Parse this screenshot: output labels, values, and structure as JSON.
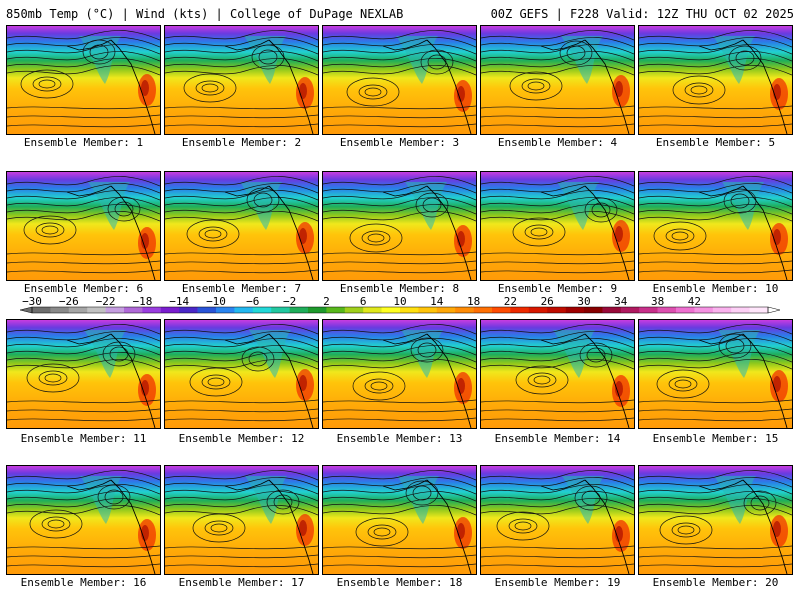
{
  "header": {
    "left": "850mb Temp (°C) | Wind (kts) | College of DuPage NEXLAB",
    "right": "00Z GEFS | F228 Valid: 12Z THU OCT 02 2025"
  },
  "members": [
    "Ensemble Member: 1",
    "Ensemble Member: 2",
    "Ensemble Member: 3",
    "Ensemble Member: 4",
    "Ensemble Member: 5",
    "Ensemble Member: 6",
    "Ensemble Member: 7",
    "Ensemble Member: 8",
    "Ensemble Member: 9",
    "Ensemble Member: 10",
    "Ensemble Member: 11",
    "Ensemble Member: 12",
    "Ensemble Member: 13",
    "Ensemble Member: 14",
    "Ensemble Member: 15",
    "Ensemble Member: 16",
    "Ensemble Member: 17",
    "Ensemble Member: 18",
    "Ensemble Member: 19",
    "Ensemble Member: 20"
  ],
  "colorbar": {
    "ticks": [
      "−30",
      "−26",
      "−22",
      "−18",
      "−14",
      "−10",
      "−6",
      "−2",
      "2",
      "6",
      "10",
      "14",
      "18",
      "22",
      "26",
      "30",
      "34",
      "38",
      "42"
    ],
    "colors": [
      "#6e6e6e",
      "#8a8a8a",
      "#a6a6a6",
      "#c2c2c2",
      "#c59ee0",
      "#b06ad8",
      "#9a3ee0",
      "#7a1ecf",
      "#4a28c8",
      "#2a55d8",
      "#2a85f0",
      "#24b8f0",
      "#22d8d8",
      "#22c8a0",
      "#1fae5a",
      "#1e9a2c",
      "#58b81c",
      "#a0d01c",
      "#e0e81c",
      "#ffff22",
      "#ffe010",
      "#ffc40a",
      "#ffa808",
      "#ff8c06",
      "#ff7004",
      "#ff4c02",
      "#ee2a00",
      "#d81800",
      "#c00c00",
      "#a00000",
      "#880000",
      "#990a3a",
      "#b01a60",
      "#c8308a",
      "#dd50b0",
      "#ee70d0",
      "#f592e2",
      "#fab2ee",
      "#fdd0f6",
      "#ffe6fb"
    ]
  }
}
